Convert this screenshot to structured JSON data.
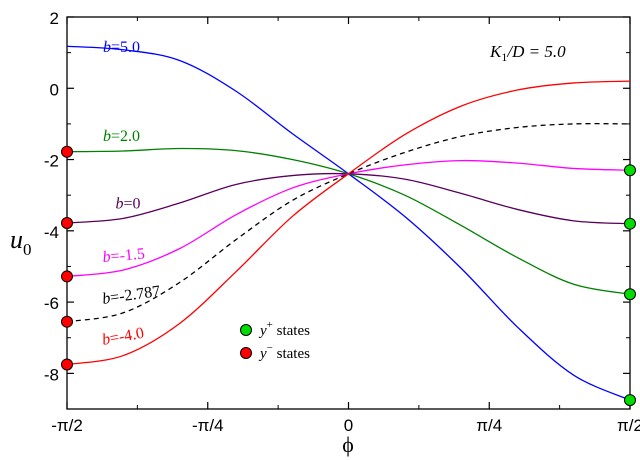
{
  "chart_data": {
    "type": "line",
    "title": "",
    "xlabel": "ϕ",
    "ylabel": "u",
    "ylabel_sub": "0",
    "xlim": [
      -1.5708,
      1.5708
    ],
    "ylim": [
      -9,
      2
    ],
    "grid": false,
    "x_ticks": [
      {
        "value": -1.5708,
        "label": "-π/2"
      },
      {
        "value": -0.7854,
        "label": "-π/4"
      },
      {
        "value": 0,
        "label": "0"
      },
      {
        "value": 0.7854,
        "label": "π/4"
      },
      {
        "value": 1.5708,
        "label": "π/2"
      }
    ],
    "y_ticks": [
      {
        "value": 2,
        "label": "2"
      },
      {
        "value": 0,
        "label": "0"
      },
      {
        "value": -2,
        "label": "-2"
      },
      {
        "value": -4,
        "label": "-4"
      },
      {
        "value": -6,
        "label": "-6"
      },
      {
        "value": -8,
        "label": "-8"
      }
    ],
    "annotation": {
      "main": "K",
      "sub": "1",
      "rest": "/D = 5.0"
    },
    "series": [
      {
        "name": "b=5.0",
        "color": "#0000ff",
        "dash": "none",
        "x": [
          -1.5708,
          -1.2566,
          -0.9425,
          -0.6283,
          -0.3142,
          0,
          0.3142,
          0.6283,
          0.9425,
          1.2566,
          1.5708
        ],
        "y": [
          1.18,
          1.08,
          0.78,
          -0.08,
          -1.27,
          -2.4,
          -3.6,
          -5.05,
          -6.7,
          -8.05,
          -8.75
        ]
      },
      {
        "name": "b=2.0",
        "color": "#008000",
        "dash": "none",
        "x": [
          -1.5708,
          -1.2566,
          -0.9425,
          -0.6283,
          -0.3142,
          0,
          0.3142,
          0.6283,
          0.9425,
          1.2566,
          1.5708
        ],
        "y": [
          -1.78,
          -1.76,
          -1.69,
          -1.75,
          -2.0,
          -2.4,
          -3.0,
          -3.85,
          -4.75,
          -5.5,
          -5.78
        ]
      },
      {
        "name": "b=0",
        "color": "#5a005a",
        "dash": "none",
        "x": [
          -1.5708,
          -1.2566,
          -0.9425,
          -0.6283,
          -0.3142,
          0,
          0.3142,
          0.6283,
          0.9425,
          1.2566,
          1.5708
        ],
        "y": [
          -3.78,
          -3.65,
          -3.22,
          -2.7,
          -2.45,
          -2.4,
          -2.55,
          -2.95,
          -3.4,
          -3.72,
          -3.8
        ]
      },
      {
        "name": "b=-1.5",
        "color": "#ff00ff",
        "dash": "none",
        "x": [
          -1.5708,
          -1.2566,
          -0.9425,
          -0.6283,
          -0.3142,
          0,
          0.3142,
          0.6283,
          0.9425,
          1.2566,
          1.5708
        ],
        "y": [
          -5.28,
          -5.1,
          -4.5,
          -3.55,
          -2.8,
          -2.4,
          -2.15,
          -2.03,
          -2.1,
          -2.25,
          -2.3
        ]
      },
      {
        "name": "b=-2.787",
        "color": "#000000",
        "dash": "5,4",
        "x": [
          -1.5708,
          -1.2566,
          -0.9425,
          -0.6283,
          -0.3142,
          0,
          0.3142,
          0.6283,
          0.9425,
          1.2566,
          1.5708
        ],
        "y": [
          -6.55,
          -6.3,
          -5.45,
          -4.25,
          -3.15,
          -2.4,
          -1.8,
          -1.35,
          -1.1,
          -1.0,
          -1.0
        ]
      },
      {
        "name": "b=-4.0",
        "color": "#ff0000",
        "dash": "none",
        "x": [
          -1.5708,
          -1.2566,
          -0.9425,
          -0.6283,
          -0.3142,
          0,
          0.3142,
          0.6283,
          0.9425,
          1.2566,
          1.5708
        ],
        "y": [
          -7.75,
          -7.5,
          -6.6,
          -5.15,
          -3.6,
          -2.4,
          -1.3,
          -0.5,
          -0.05,
          0.15,
          0.2
        ]
      }
    ],
    "curve_labels": [
      {
        "text": "b=5.0",
        "color": "#0000ff",
        "x": -1.37,
        "y": 1.02,
        "rotate": 0
      },
      {
        "text": "b=2.0",
        "color": "#008000",
        "x": -1.37,
        "y": -1.48,
        "rotate": 0
      },
      {
        "text": "b=0",
        "color": "#5a005a",
        "x": -1.3,
        "y": -3.38,
        "rotate": 0
      },
      {
        "text": "b=-1.5",
        "color": "#ff00ff",
        "x": -1.37,
        "y": -4.88,
        "rotate": -5
      },
      {
        "text": "b=-2.787",
        "color": "#000000",
        "x": -1.37,
        "y": -6.05,
        "rotate": -8
      },
      {
        "text": "b=-4.0",
        "color": "#ff0000",
        "x": -1.37,
        "y": -7.2,
        "rotate": -10
      }
    ],
    "markers": [
      {
        "state": "minus",
        "color": "#ff0000",
        "x": -1.5708,
        "y": -1.78
      },
      {
        "state": "minus",
        "color": "#ff0000",
        "x": -1.5708,
        "y": -3.78
      },
      {
        "state": "minus",
        "color": "#ff0000",
        "x": -1.5708,
        "y": -5.28
      },
      {
        "state": "minus",
        "color": "#ff0000",
        "x": -1.5708,
        "y": -6.55
      },
      {
        "state": "minus",
        "color": "#ff0000",
        "x": -1.5708,
        "y": -7.75
      },
      {
        "state": "plus",
        "color": "#00dd00",
        "x": 1.5708,
        "y": -2.3
      },
      {
        "state": "plus",
        "color": "#00dd00",
        "x": 1.5708,
        "y": -3.8
      },
      {
        "state": "plus",
        "color": "#00dd00",
        "x": 1.5708,
        "y": -5.78
      },
      {
        "state": "plus",
        "color": "#00dd00",
        "x": 1.5708,
        "y": -8.75
      }
    ],
    "legend": {
      "placement": "center-bottom",
      "entries": [
        {
          "symbol": "y",
          "sup": "+",
          "rest": " states",
          "color": "#00dd00"
        },
        {
          "symbol": "y",
          "sup": "−",
          "rest": " states",
          "color": "#ff0000"
        }
      ]
    }
  }
}
